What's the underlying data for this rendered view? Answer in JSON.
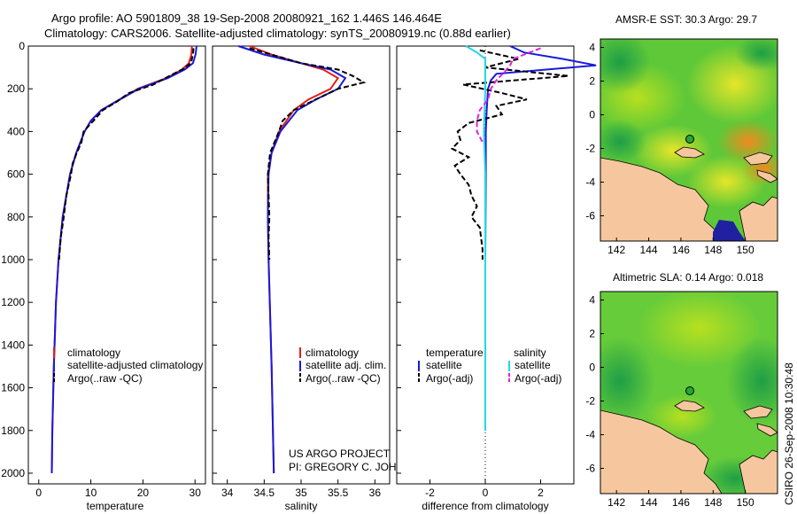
{
  "title_line1": "Argo profile: AO 5901809_38 19-Sep-2008 20080921_162 1.446S 146.464E",
  "title_line2": "Climatology: CARS2006. Satellite-adjusted climatology: synTS_20080919.nc (0.88d earlier)",
  "credit_line1": "US ARGO PROJECT",
  "credit_line2": "PI: GREGORY C. JOHNSON",
  "side_stamp": "CSIRO 26-Sep-2008 10:30:48",
  "colors": {
    "climatology": "#e0201a",
    "satellite": "#1a1adc",
    "argo": "#000000",
    "salinity_sat": "#22d8e8",
    "salinity_argo": "#e020e0",
    "land": "#f6c79e"
  },
  "chart_data": [
    {
      "id": "temperature",
      "type": "line",
      "xlabel": "temperature",
      "ylabel": "depth",
      "xlim": [
        -2,
        32
      ],
      "ylim": [
        2050,
        0
      ],
      "xticks": [
        0,
        10,
        20,
        30
      ],
      "yticks": [
        0,
        200,
        400,
        600,
        800,
        1000,
        1200,
        1400,
        1600,
        1800,
        2000
      ],
      "legend": [
        "climatology",
        "satellite-adjusted climatology",
        "Argo(..raw -QC)"
      ],
      "series": [
        {
          "name": "climatology",
          "style": "solid",
          "color": "#e0201a",
          "depth": [
            0,
            40,
            80,
            110,
            150,
            200,
            250,
            300,
            350,
            400,
            500,
            600,
            800,
            1000,
            1200,
            1500,
            1800,
            2000
          ],
          "values": [
            29.4,
            29.3,
            28.8,
            27.5,
            24.5,
            19.0,
            15.5,
            12.0,
            10.0,
            8.8,
            7.2,
            6.0,
            4.6,
            3.8,
            3.3,
            2.9,
            2.6,
            2.5
          ]
        },
        {
          "name": "satellite-adjusted climatology",
          "style": "solid",
          "color": "#1a1adc",
          "depth": [
            0,
            40,
            80,
            110,
            150,
            200,
            250,
            300,
            350,
            400,
            500,
            600,
            800,
            1000,
            1200,
            1500,
            1800,
            2000
          ],
          "values": [
            30.3,
            30.1,
            29.6,
            28.0,
            24.8,
            19.2,
            15.6,
            12.0,
            10.0,
            8.8,
            7.2,
            6.0,
            4.6,
            3.8,
            3.3,
            2.9,
            2.6,
            2.5
          ]
        },
        {
          "name": "Argo(..raw -QC)",
          "style": "dashed",
          "color": "#000000",
          "depth": [
            10,
            40,
            80,
            110,
            150,
            180,
            220,
            260,
            300,
            350,
            400,
            450,
            500,
            550,
            600,
            700,
            800,
            900,
            1000
          ],
          "values": [
            29.7,
            29.6,
            29.2,
            27.5,
            24.3,
            22.0,
            17.3,
            15.0,
            12.3,
            10.5,
            8.6,
            8.2,
            7.3,
            6.5,
            6.2,
            5.3,
            4.8,
            4.2,
            3.9
          ]
        }
      ]
    },
    {
      "id": "salinity",
      "type": "line",
      "xlabel": "salinity",
      "ylabel": "depth",
      "xlim": [
        33.8,
        36.2
      ],
      "ylim": [
        2050,
        0
      ],
      "xticks": [
        34,
        34.5,
        35,
        35.5,
        36
      ],
      "yticks": [
        0,
        200,
        400,
        600,
        800,
        1000,
        1200,
        1400,
        1600,
        1800,
        2000
      ],
      "legend": [
        "climatology",
        "satellite adj. clim.",
        "Argo(..raw -QC)"
      ],
      "series": [
        {
          "name": "climatology",
          "style": "solid",
          "color": "#e0201a",
          "depth": [
            0,
            40,
            80,
            110,
            150,
            200,
            250,
            300,
            400,
            500,
            600,
            800,
            1000,
            1500,
            2000
          ],
          "values": [
            34.3,
            34.6,
            35.0,
            35.3,
            35.5,
            35.4,
            35.1,
            34.9,
            34.7,
            34.6,
            34.55,
            34.55,
            34.56,
            34.6,
            34.63
          ]
        },
        {
          "name": "satellite adj. clim.",
          "style": "solid",
          "color": "#1a1adc",
          "depth": [
            0,
            40,
            80,
            110,
            150,
            200,
            250,
            300,
            400,
            500,
            600,
            800,
            1000,
            1500,
            2000
          ],
          "values": [
            34.15,
            34.5,
            35.0,
            35.4,
            35.6,
            35.5,
            35.2,
            34.95,
            34.72,
            34.6,
            34.56,
            34.55,
            34.56,
            34.6,
            34.63
          ]
        },
        {
          "name": "Argo(..raw -QC)",
          "style": "dashed",
          "color": "#000000",
          "depth": [
            10,
            40,
            80,
            110,
            140,
            170,
            200,
            250,
            300,
            350,
            400,
            500,
            600,
            700,
            800,
            900,
            1000
          ],
          "values": [
            34.3,
            34.6,
            35.0,
            35.5,
            35.7,
            35.85,
            35.5,
            35.2,
            34.9,
            34.75,
            34.7,
            34.58,
            34.55,
            34.56,
            34.57,
            34.56,
            34.57
          ]
        }
      ]
    },
    {
      "id": "difference",
      "type": "line",
      "xlabel": "difference from climatology",
      "ylabel": "depth",
      "xlim": [
        -3.2,
        3.2
      ],
      "ylim": [
        2050,
        0
      ],
      "xticks": [
        -2,
        0,
        2
      ],
      "yticks": [
        0,
        200,
        400,
        600,
        800,
        1000,
        1200,
        1400,
        1600,
        1800,
        2000
      ],
      "legend_temperature_heading": "temperature",
      "legend_salinity_heading": "salinity",
      "legend": [
        "satellite",
        "Argo(-adj)",
        "satellite",
        "Argo(-adj)"
      ],
      "series": [
        {
          "name": "temperature satellite",
          "style": "solid",
          "color": "#1a1adc",
          "depth": [
            0,
            30,
            60,
            90,
            110,
            130,
            160,
            200,
            300,
            400,
            600,
            1000,
            1500,
            1800
          ],
          "values": [
            0.9,
            1.4,
            2.8,
            4.0,
            2.2,
            0.4,
            0.2,
            0.1,
            0.05,
            0.02,
            0.02,
            0.0,
            0.0,
            0.0
          ]
        },
        {
          "name": "temperature Argo(-adj)",
          "style": "dashed",
          "color": "#000000",
          "depth": [
            20,
            60,
            100,
            140,
            180,
            220,
            250,
            280,
            320,
            360,
            400,
            440,
            480,
            520,
            560,
            600,
            650,
            700,
            750,
            800,
            850,
            900,
            950,
            1000
          ],
          "values": [
            -0.2,
            1.2,
            0.0,
            3.0,
            -0.8,
            0.6,
            1.5,
            0.4,
            0.6,
            -0.6,
            -1.0,
            -0.9,
            -1.2,
            -0.6,
            -1.1,
            -0.9,
            -0.6,
            -0.5,
            -0.3,
            -0.5,
            -0.2,
            -0.15,
            -0.1,
            -0.1
          ]
        },
        {
          "name": "salinity satellite",
          "style": "solid",
          "color": "#22d8e8",
          "depth": [
            0,
            30,
            60,
            100,
            200,
            400,
            600,
            1000,
            1500,
            1800
          ],
          "values": [
            -0.7,
            -0.3,
            0.0,
            0.0,
            0.0,
            -0.05,
            0.0,
            0.0,
            0.0,
            0.0
          ]
        },
        {
          "name": "salinity Argo(-adj)",
          "style": "dashed",
          "color": "#e020e0",
          "depth": [
            10,
            30,
            60,
            90,
            120,
            160,
            200,
            250,
            300,
            350,
            400,
            450
          ],
          "values": [
            2.0,
            1.6,
            1.0,
            0.9,
            0.7,
            0.4,
            0.2,
            0.1,
            -0.2,
            -0.3,
            -0.3,
            -0.1
          ]
        }
      ]
    },
    {
      "id": "sst_map",
      "type": "heatmap",
      "title": "AMSR-E SST: 30.3 Argo: 29.7",
      "xlim": [
        141,
        152
      ],
      "ylim": [
        -7.5,
        4.5
      ],
      "xticks": [
        142,
        144,
        146,
        148,
        150
      ],
      "yticks": [
        -6,
        -4,
        -2,
        0,
        2,
        4
      ],
      "argo_position": {
        "lon": 146.464,
        "lat": -1.446
      }
    },
    {
      "id": "sla_map",
      "type": "heatmap",
      "title": "Altimetric SLA: 0.14 Argo: 0.018",
      "xlim": [
        141,
        152
      ],
      "ylim": [
        -7.5,
        4.5
      ],
      "xticks": [
        142,
        144,
        146,
        148,
        150
      ],
      "yticks": [
        -6,
        -4,
        -2,
        0,
        2,
        4
      ],
      "argo_position": {
        "lon": 146.464,
        "lat": -1.446
      }
    }
  ]
}
